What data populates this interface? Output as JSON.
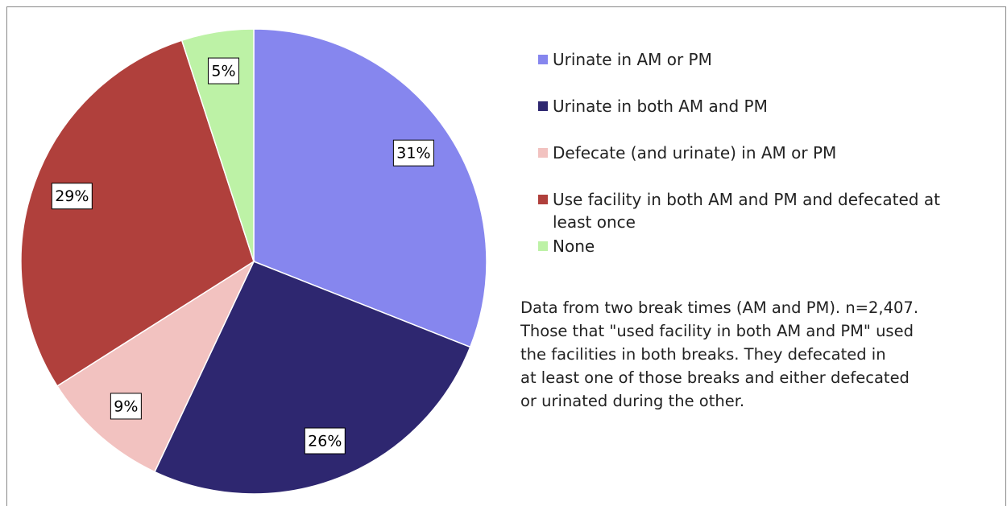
{
  "chart_data": {
    "type": "pie",
    "categories": [
      "Urinate in AM or PM",
      "Urinate in both AM and PM",
      "Defecate (and urinate) in AM or PM",
      "Use facility in both AM and PM and defecated at least once",
      "None"
    ],
    "values": [
      31,
      26,
      9,
      29,
      5
    ],
    "value_labels": [
      "31%",
      "26%",
      "9%",
      "29%",
      "5%"
    ],
    "colors": [
      "#8686ee",
      "#2e2770",
      "#f2c2c0",
      "#b0403c",
      "#bdf2a6"
    ],
    "note": [
      "Data from two break times (AM and PM). n=2,407.",
      "Those that \"used facility in both AM and PM\" used",
      "the facilities in both breaks. They defecated in",
      "at least one of those breaks and either defecated",
      "or urinated during the other."
    ]
  }
}
